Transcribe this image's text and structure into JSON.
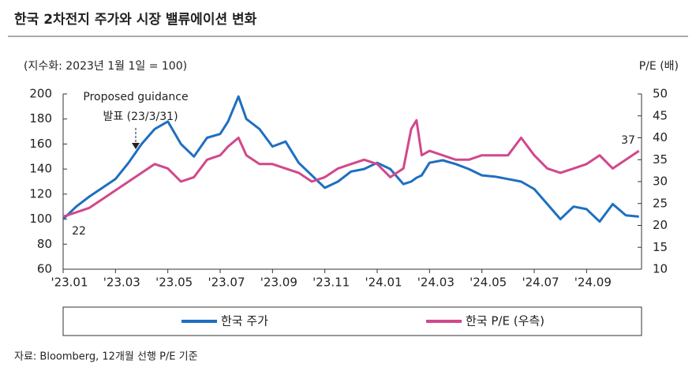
{
  "chart_data": {
    "type": "line",
    "title": "한국 2차전지 주가와 시장 밸류에이션 변화",
    "subtitle": "(지수화: 2023년 1월 1일 = 100)",
    "y2_label": "P/E (배)",
    "source": "자료: Bloomberg, 12개월 선행 P/E 기준",
    "annotations": [
      "Proposed guidance",
      "발표 (23/3/31)",
      "22",
      "37"
    ],
    "x": [
      0,
      0.5,
      1,
      1.5,
      2,
      2.5,
      3,
      3.5,
      4,
      4.5,
      5,
      5.5,
      6,
      6.3,
      6.7,
      7,
      7.5,
      8,
      8.5,
      9,
      9.5,
      10,
      10.5,
      11,
      11.5,
      12,
      12.5,
      13,
      13.3,
      13.5,
      13.7,
      14,
      14.5,
      15,
      15.5,
      16,
      16.5,
      17,
      17.5,
      18,
      18.5,
      19,
      19.5,
      20,
      20.5,
      21,
      21.5,
      22
    ],
    "xlim": [
      0,
      22.1
    ],
    "xticks": [
      {
        "value": 0,
        "label": "'23.01"
      },
      {
        "value": 2,
        "label": "'23.03"
      },
      {
        "value": 4,
        "label": "'23.05"
      },
      {
        "value": 6,
        "label": "'23.07"
      },
      {
        "value": 8,
        "label": "'23.09"
      },
      {
        "value": 10,
        "label": "'23.11"
      },
      {
        "value": 12,
        "label": "'24.01"
      },
      {
        "value": 14,
        "label": "'24.03"
      },
      {
        "value": 16,
        "label": "'24.05"
      },
      {
        "value": 18,
        "label": "'24.07"
      },
      {
        "value": 20,
        "label": "'24.09"
      }
    ],
    "ylim": [
      60,
      200
    ],
    "yticks": [
      60,
      80,
      100,
      120,
      140,
      160,
      180,
      200
    ],
    "y2lim": [
      10,
      50
    ],
    "y2ticks": [
      10,
      15,
      20,
      25,
      30,
      35,
      40,
      45,
      50
    ],
    "series": [
      {
        "name": "한국 주가",
        "color": "#1f6fc0",
        "values": [
          100,
          110,
          118,
          125,
          132,
          145,
          160,
          172,
          178,
          160,
          150,
          165,
          168,
          178,
          198,
          180,
          172,
          158,
          162,
          145,
          135,
          125,
          130,
          138,
          140,
          145,
          140,
          128,
          130,
          133,
          135,
          145,
          147,
          144,
          140,
          135,
          134,
          132,
          130,
          124,
          112,
          100,
          110,
          108,
          98,
          112,
          103,
          102
        ]
      },
      {
        "name": "한국 P/E (우측)",
        "color": "#d1488c",
        "values": [
          22,
          23,
          24,
          26,
          28,
          30,
          32,
          34,
          33,
          30,
          31,
          35,
          36,
          38,
          40,
          36,
          34,
          34,
          33,
          32,
          30,
          31,
          33,
          34,
          35,
          34,
          31,
          33,
          42,
          44,
          36,
          37,
          36,
          35,
          35,
          36,
          36,
          36,
          40,
          36,
          33,
          32,
          33,
          34,
          36,
          33,
          35,
          37
        ],
        "axis": "y2"
      }
    ],
    "legend": "bottom",
    "grid": false
  }
}
